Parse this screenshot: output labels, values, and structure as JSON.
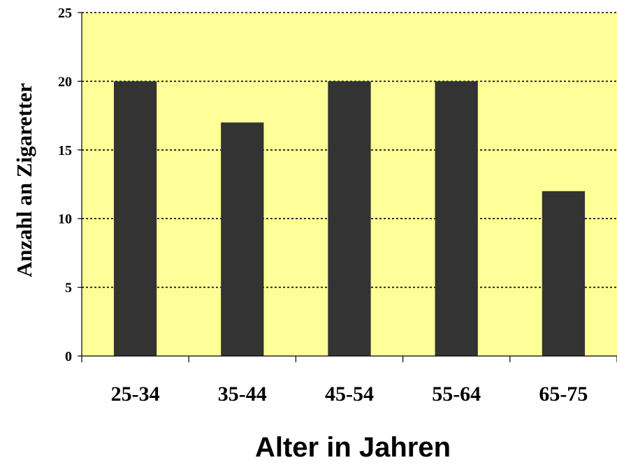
{
  "chart_data": {
    "type": "bar",
    "title": "",
    "xlabel": "Alter in Jahren",
    "ylabel": "Anzahl an Zigaretter",
    "categories": [
      "25-34",
      "35-44",
      "45-54",
      "55-64",
      "65-75"
    ],
    "values": [
      20,
      17,
      20,
      20,
      12
    ],
    "ylim": [
      0,
      25
    ],
    "yticks": [
      "0",
      "5",
      "10",
      "15",
      "20",
      "25"
    ],
    "grid": true,
    "grid_style": "dotted",
    "legend": "none",
    "colors": {
      "plot_background": "#FFFF99",
      "bar": "#333333",
      "grid": "#000000",
      "axis": "#000000"
    }
  }
}
